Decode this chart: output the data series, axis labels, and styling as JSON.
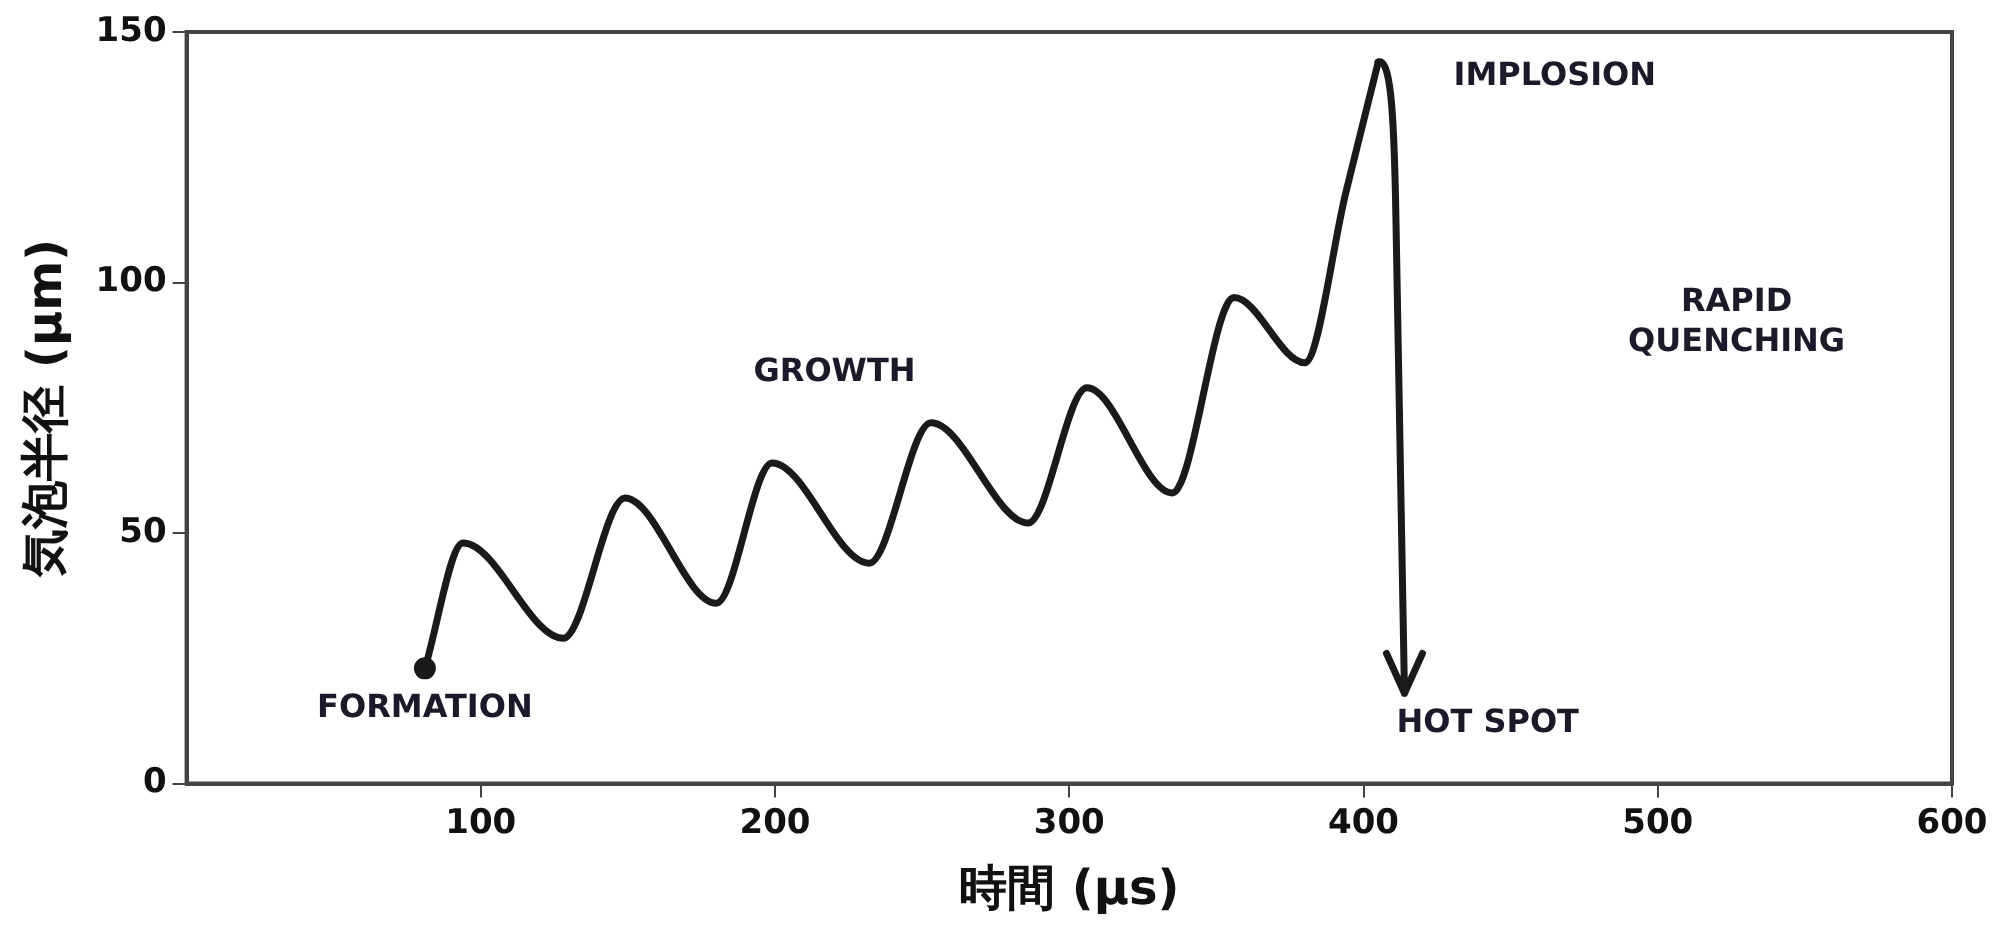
{
  "chart_data": {
    "type": "line",
    "xlabel": "時間 (μs)",
    "ylabel": "気泡半径 (μm)",
    "xlim": [
      0,
      600
    ],
    "xticks": [
      100,
      200,
      300,
      400,
      500,
      600
    ],
    "ylim": [
      0,
      150
    ],
    "yticks": [
      0,
      50,
      100,
      150
    ],
    "grid": false,
    "legend": false,
    "series": [
      {
        "color": "#1a1a1a",
        "marker": "none",
        "x": [
          81,
          94,
          128,
          149,
          180,
          199,
          232,
          253,
          286,
          306,
          335,
          356,
          380,
          394,
          405
        ],
        "values": [
          23,
          48,
          29,
          57,
          36,
          64,
          44,
          72,
          52,
          79,
          58,
          97,
          84,
          118,
          144
        ]
      },
      {
        "type": "scatter",
        "color": "#1a1a1a",
        "marker": "circle",
        "x": [
          81
        ],
        "values": [
          23
        ]
      }
    ],
    "annotations": [
      "FORMATION",
      "GROWTH",
      "IMPLOSION",
      {
        "text": "HOT SPOT",
        "x": 405,
        "y": 144
      },
      "RAPID\nQUENCHING"
    ]
  }
}
